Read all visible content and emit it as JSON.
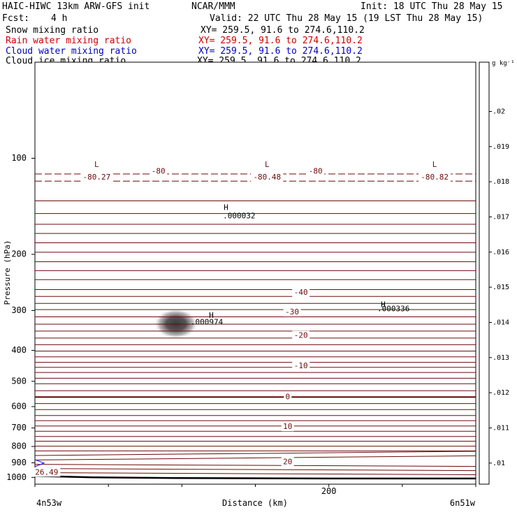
{
  "header": {
    "title_left": "HAIC-HIWC 13km ARW-GFS init",
    "title_center": "NCAR/MMM",
    "title_right": "Init: 18 UTC Thu 28 May 15",
    "fcst_label": "Fcst:",
    "fcst_value": "4 h",
    "valid": "Valid: 22 UTC Thu 28 May 15 (19 LST Thu 28 May 15)",
    "fields": [
      {
        "name": "Snow mixing ratio",
        "xy": "XY= 259.5, 91.6 to 274.6,110.2",
        "color": "#000000"
      },
      {
        "name": "Rain water mixing ratio",
        "xy": "XY= 259.5, 91.6 to 274.6,110.2",
        "color": "#d00000"
      },
      {
        "name": "Cloud water mixing ratio",
        "xy": "XY= 259.5, 91.6 to 274.6,110.2",
        "color": "#0000c8"
      },
      {
        "name": "Cloud ice mixing ratio",
        "xy": "XY= 259.5, 91.6 to 274.6,110.2",
        "color": "#000000"
      }
    ]
  },
  "chart_data": {
    "type": "heatmap",
    "xlabel": "Distance (km)",
    "ylabel": "Pressure (hPa)",
    "x_ticks": [
      {
        "value": 200,
        "label": "200"
      }
    ],
    "x_range": [
      0,
      300
    ],
    "x_end_labels": {
      "left": "4n53w",
      "right": "6n51w"
    },
    "y_ticks": [
      100,
      200,
      300,
      400,
      500,
      600,
      700,
      800,
      900,
      1000
    ],
    "y_range": [
      50,
      1050
    ],
    "y_scale": "log",
    "colorbar": {
      "unit": "g kg⁻¹",
      "labels": [
        ".01",
        ".011",
        ".012",
        ".013",
        ".014",
        ".015",
        ".016",
        ".017",
        ".018",
        ".019",
        ".02"
      ],
      "colors": [
        "#ffffff",
        "#f0f0f0",
        "#e1e1e1",
        "#d2d2d2",
        "#c3c3c3",
        "#b4b4b4",
        "#a5a5a5",
        "#969696",
        "#878787",
        "#787878",
        "#696969",
        "#4b4b4b"
      ]
    },
    "contour_color": "#6e0a0a",
    "contour_labels": [
      {
        "text": "-80.27",
        "x": 42,
        "p": 115
      },
      {
        "text": "-80",
        "x": 84,
        "p": 110
      },
      {
        "text": "-80.48",
        "x": 158,
        "p": 115
      },
      {
        "text": "-80",
        "x": 191,
        "p": 110
      },
      {
        "text": "-80.82",
        "x": 272,
        "p": 115
      },
      {
        "text": ".000032",
        "x": 139,
        "p": 152
      },
      {
        "text": "-40",
        "x": 181,
        "p": 264
      },
      {
        "text": "-30",
        "x": 175,
        "p": 304
      },
      {
        "text": ".000974",
        "x": 117,
        "p": 327
      },
      {
        "text": ".000336",
        "x": 244,
        "p": 297
      },
      {
        "text": "-20",
        "x": 181,
        "p": 360
      },
      {
        "text": "-10",
        "x": 181,
        "p": 448
      },
      {
        "text": "0",
        "x": 172,
        "p": 560
      },
      {
        "text": "10",
        "x": 172,
        "p": 695
      },
      {
        "text": "20",
        "x": 172,
        "p": 895
      },
      {
        "text": "26.49",
        "x": 8,
        "p": 965
      }
    ],
    "extremum_marks": [
      {
        "text": "L",
        "x": 42,
        "p": 105
      },
      {
        "text": "L",
        "x": 158,
        "p": 105
      },
      {
        "text": "L",
        "x": 272,
        "p": 105
      },
      {
        "text": "H",
        "x": 130,
        "p": 143
      },
      {
        "text": "H",
        "x": 120,
        "p": 312
      },
      {
        "text": "H",
        "x": 237,
        "p": 288
      },
      {
        "text": "H",
        "x": 10,
        "p": 955
      }
    ],
    "cloud_blob": {
      "x": 96,
      "p": 330
    }
  }
}
